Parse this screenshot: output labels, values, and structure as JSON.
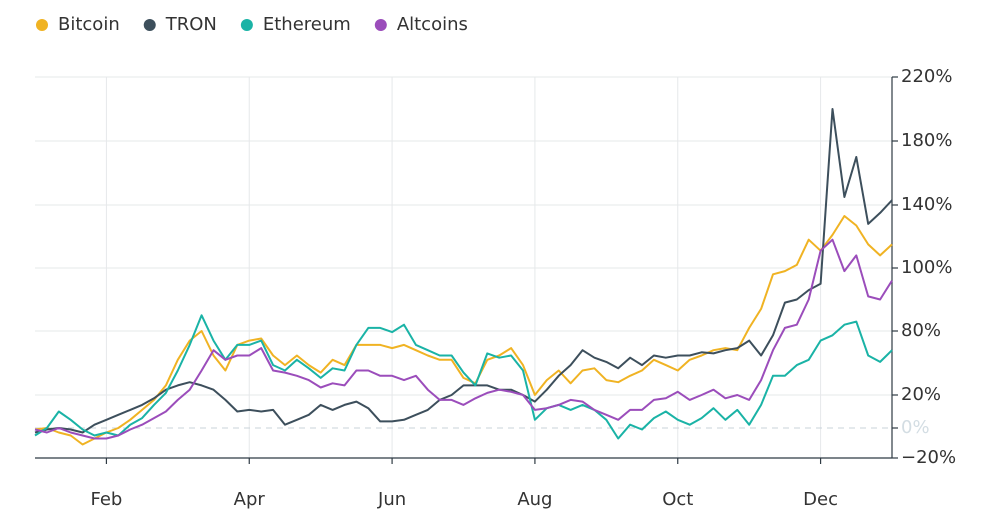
{
  "chart_data": {
    "type": "line",
    "categories": [
      null,
      null,
      null,
      null,
      null,
      null,
      "Feb",
      null,
      null,
      null,
      null,
      null,
      null,
      null,
      null,
      null,
      null,
      null,
      "Apr",
      null,
      null,
      null,
      null,
      null,
      null,
      null,
      null,
      null,
      null,
      null,
      "Jun",
      null,
      null,
      null,
      null,
      null,
      null,
      null,
      null,
      null,
      null,
      null,
      "Aug",
      null,
      null,
      null,
      null,
      null,
      null,
      null,
      null,
      null,
      null,
      null,
      "Oct",
      null,
      null,
      null,
      null,
      null,
      null,
      null,
      null,
      null,
      null,
      null,
      "Dec",
      null,
      null,
      null,
      null,
      null,
      null
    ],
    "ylim": [
      -20,
      220
    ],
    "yticks": [
      {
        "value": 220,
        "label": "220%"
      },
      {
        "value": 180,
        "label": "180%"
      },
      {
        "value": 140,
        "label": "140%"
      },
      {
        "value": 100,
        "label": "100%"
      },
      {
        "value": 80,
        "label": "80%"
      },
      {
        "value": 20,
        "label": "20%"
      },
      {
        "value": 0,
        "label": "0%"
      },
      {
        "value": -20,
        "label": "−20%"
      }
    ],
    "grid": true,
    "legend": "top-left",
    "series": [
      {
        "name": "Bitcoin",
        "color": "#f0b323",
        "values": [
          -1,
          0,
          -3,
          -5,
          -11,
          -7,
          -3,
          0,
          5,
          11,
          17,
          29,
          53,
          71,
          80,
          57,
          43,
          67,
          71,
          73,
          57,
          48,
          57,
          48,
          41,
          53,
          48,
          67,
          67,
          67,
          64,
          67,
          62,
          57,
          53,
          53,
          36,
          31,
          53,
          57,
          64,
          48,
          20,
          34,
          43,
          31,
          43,
          45,
          34,
          32,
          38,
          43,
          53,
          48,
          43,
          53,
          57,
          62,
          64,
          62,
          81,
          87,
          98,
          99,
          102,
          118,
          111,
          121,
          133,
          127,
          115,
          108,
          115
        ]
      },
      {
        "name": "TRON",
        "color": "#3d4f5c",
        "values": [
          -3,
          -1,
          0,
          -1,
          -3,
          2,
          5,
          8,
          11,
          14,
          18,
          25,
          29,
          32,
          29,
          25,
          17,
          10,
          11,
          10,
          11,
          2,
          5,
          8,
          14,
          11,
          14,
          16,
          12,
          4,
          4,
          5,
          8,
          11,
          17,
          20,
          29,
          29,
          29,
          25,
          25,
          20,
          16,
          25,
          38,
          48,
          62,
          55,
          51,
          45,
          55,
          48,
          57,
          55,
          57,
          57,
          60,
          59,
          62,
          64,
          71,
          57,
          76,
          89,
          90,
          93,
          95,
          200,
          145,
          170,
          128,
          135,
          143
        ]
      },
      {
        "name": "Ethereum",
        "color": "#1ab3a6",
        "values": [
          -5,
          0,
          10,
          5,
          -1,
          -5,
          -3,
          -5,
          2,
          6,
          14,
          22,
          43,
          67,
          85,
          71,
          53,
          67,
          67,
          71,
          48,
          43,
          53,
          45,
          36,
          45,
          43,
          67,
          81,
          81,
          79,
          82,
          67,
          62,
          57,
          57,
          41,
          29,
          59,
          55,
          57,
          43,
          5,
          12,
          14,
          11,
          14,
          11,
          5,
          -7,
          2,
          -1,
          6,
          10,
          5,
          2,
          6,
          12,
          5,
          11,
          2,
          14,
          38,
          38,
          48,
          53,
          71,
          76,
          82,
          83,
          57,
          51,
          62
        ]
      },
      {
        "name": "Altcoins",
        "color": "#9b4dbb",
        "values": [
          -1,
          -3,
          0,
          -3,
          -5,
          -7,
          -7,
          -5,
          -1,
          2,
          6,
          10,
          17,
          25,
          43,
          62,
          53,
          57,
          57,
          64,
          43,
          41,
          38,
          34,
          27,
          31,
          29,
          43,
          43,
          38,
          38,
          34,
          38,
          25,
          17,
          17,
          14,
          18,
          22,
          25,
          23,
          20,
          11,
          12,
          14,
          17,
          16,
          11,
          8,
          5,
          11,
          11,
          17,
          18,
          23,
          17,
          20,
          25,
          18,
          20,
          17,
          34,
          62,
          81,
          82,
          90,
          111,
          118,
          99,
          108,
          91,
          90,
          96
        ]
      }
    ]
  }
}
